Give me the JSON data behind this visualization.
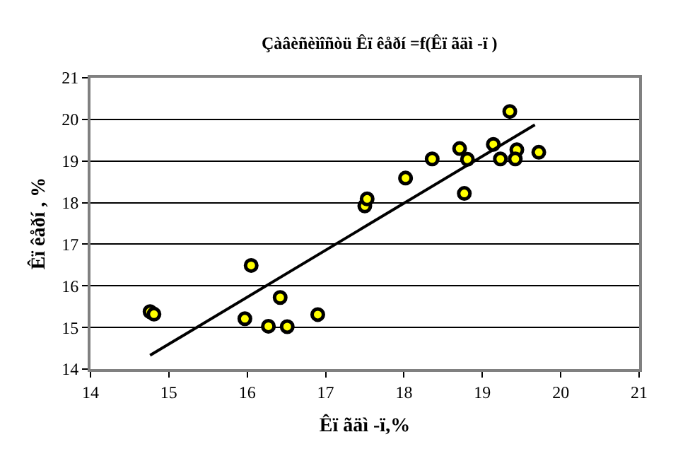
{
  "chart_data": {
    "type": "scatter",
    "title": "Çàâèñèìîñòü Êï êåðí =f(Êï ãäì -ï )",
    "xlabel": "Êï ãäì -ï,%",
    "ylabel": "Êï êåðí , %",
    "xlim": [
      14,
      21
    ],
    "xticks": [
      14,
      15,
      16,
      17,
      18,
      19,
      20,
      21
    ],
    "ylim": [
      14,
      21
    ],
    "yticks": [
      14,
      15,
      16,
      17,
      18,
      19,
      20,
      21
    ],
    "grid": "y",
    "marker": "circle",
    "series": [
      {
        "color": "#ffff00",
        "x": [
          14.76,
          14.81,
          16.05,
          15.97,
          16.27,
          16.51,
          16.42,
          16.9,
          17.5,
          17.53,
          18.02,
          18.36,
          18.71,
          18.81,
          18.77,
          19.14,
          19.23,
          19.35,
          19.44,
          19.42,
          19.72
        ],
        "values": [
          15.38,
          15.32,
          16.49,
          15.21,
          15.03,
          15.02,
          15.72,
          15.31,
          17.92,
          18.09,
          18.59,
          19.05,
          19.3,
          19.04,
          18.22,
          19.4,
          19.05,
          20.19,
          19.27,
          19.05,
          19.21
        ]
      },
      {
        "type": "line",
        "color": "#000000",
        "line_style": "solid",
        "marker": "none",
        "x": [
          14.76,
          19.67
        ],
        "values": [
          14.33,
          19.87
        ]
      }
    ]
  }
}
